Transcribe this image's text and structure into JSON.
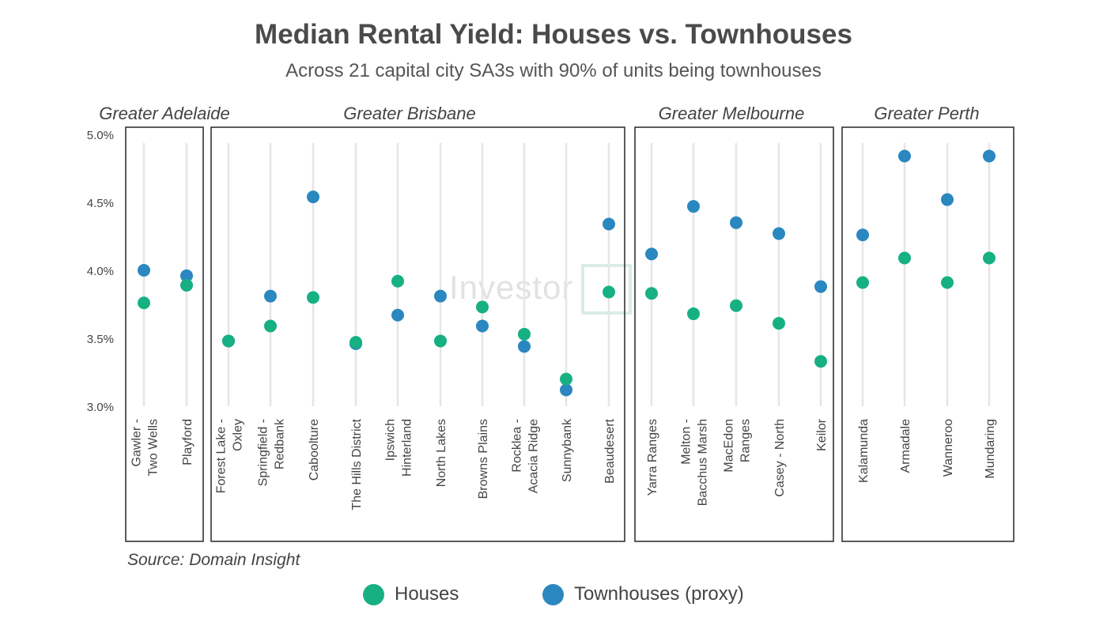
{
  "title": "Median Rental Yield: Houses vs. Townhouses",
  "subtitle": "Across 21 capital city SA3s with 90% of units being townhouses",
  "source": "Source: Domain Insight",
  "watermark": "Investor",
  "legend": [
    {
      "label": "Houses",
      "color": "#16b083"
    },
    {
      "label": "Townhouses (proxy)",
      "color": "#2a87bf"
    }
  ],
  "chart_data": {
    "type": "scatter",
    "title": "Median Rental Yield: Houses vs. Townhouses",
    "subtitle": "Across 21 capital city SA3s with 90% of units being townhouses",
    "xlabel": "",
    "ylabel": "",
    "ylim": [
      3.0,
      5.0
    ],
    "yticks": [
      "3.0%",
      "3.5%",
      "4.0%",
      "4.5%",
      "5.0%"
    ],
    "yticks_values": [
      3.0,
      3.5,
      4.0,
      4.5,
      5.0
    ],
    "grid": "vertical",
    "legend_position": "bottom",
    "panels": [
      {
        "name": "Greater Adelaide",
        "categories": [
          "Gawler - Two Wells",
          "Playford"
        ],
        "houses": [
          3.76,
          3.89
        ],
        "townhouses": [
          4.0,
          3.96
        ]
      },
      {
        "name": "Greater Brisbane",
        "categories": [
          "Forest Lake - Oxley",
          "Springfield - Redbank",
          "Caboolture",
          "The Hills District",
          "Ipswich Hinterland",
          "North Lakes",
          "Browns Plains",
          "Rocklea - Acacia Ridge",
          "Sunnybank",
          "Beaudesert"
        ],
        "houses": [
          3.48,
          3.59,
          3.8,
          3.47,
          3.92,
          3.48,
          3.73,
          3.53,
          3.2,
          3.84
        ],
        "townhouses": [
          3.48,
          3.81,
          4.54,
          3.46,
          3.67,
          3.81,
          3.59,
          3.44,
          3.12,
          4.34
        ]
      },
      {
        "name": "Greater Melbourne",
        "categories": [
          "Yarra Ranges",
          "Melton - Bacchus Marsh",
          "MacEdon Ranges",
          "Casey - North",
          "Keilor"
        ],
        "houses": [
          3.83,
          3.68,
          3.74,
          3.61,
          3.33
        ],
        "townhouses": [
          4.12,
          4.47,
          4.35,
          4.27,
          3.88
        ]
      },
      {
        "name": "Greater Perth",
        "categories": [
          "Kalamunda",
          "Armadale",
          "Wanneroo",
          "Mundaring"
        ],
        "houses": [
          3.91,
          4.09,
          3.91,
          4.09
        ],
        "townhouses": [
          4.26,
          4.84,
          4.52,
          4.84
        ]
      }
    ],
    "series": [
      {
        "name": "Houses",
        "color": "#16b083"
      },
      {
        "name": "Townhouses (proxy)",
        "color": "#2a87bf"
      }
    ]
  }
}
